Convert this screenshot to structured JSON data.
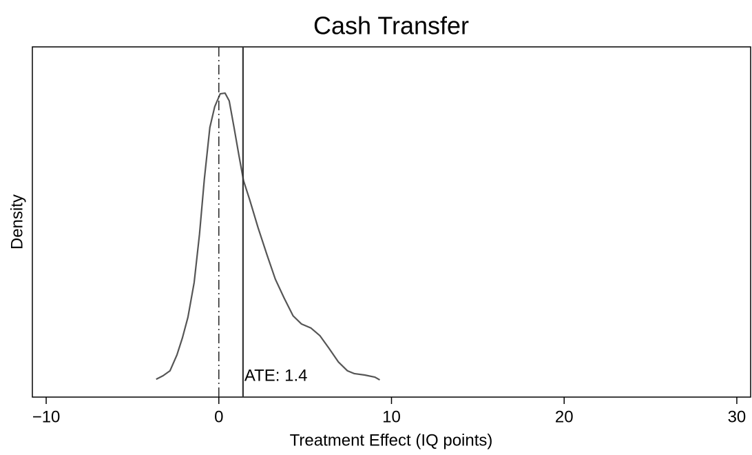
{
  "chart_data": {
    "type": "line",
    "title": "Cash Transfer",
    "xlabel": "Treatment Effect (IQ points)",
    "ylabel": "Density",
    "x": [
      -3.63,
      -3.23,
      -2.83,
      -2.43,
      -2.11,
      -1.79,
      -1.43,
      -1.12,
      -0.84,
      -0.52,
      -0.24,
      0.08,
      0.36,
      0.6,
      0.88,
      1.16,
      1.43,
      1.79,
      2.27,
      2.79,
      3.27,
      3.78,
      4.3,
      4.78,
      5.34,
      5.86,
      6.37,
      6.93,
      7.45,
      7.85,
      8.45,
      9.04,
      9.32
    ],
    "series": [
      {
        "name": "Density",
        "color": "#555555",
        "values": [
          0.051,
          0.061,
          0.075,
          0.12,
          0.169,
          0.228,
          0.327,
          0.465,
          0.622,
          0.77,
          0.829,
          0.866,
          0.868,
          0.846,
          0.77,
          0.691,
          0.618,
          0.563,
          0.484,
          0.406,
          0.337,
          0.283,
          0.232,
          0.209,
          0.197,
          0.175,
          0.14,
          0.1,
          0.075,
          0.067,
          0.063,
          0.057,
          0.049
        ]
      }
    ],
    "vlines": [
      {
        "value": 0,
        "style": "dashdot"
      },
      {
        "value": 1.4,
        "style": "solid",
        "label": "ATE: 1.4"
      }
    ],
    "xlim": [
      -10.8,
      30.8
    ],
    "xticks": [
      {
        "value": -10,
        "label": "−10"
      },
      0,
      10,
      20,
      30
    ],
    "ylim": [
      0,
      1
    ],
    "grid": false
  }
}
